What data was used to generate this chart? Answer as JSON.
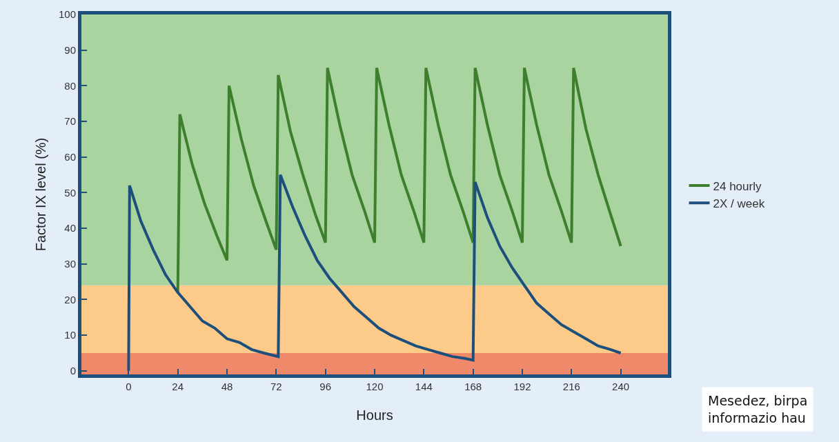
{
  "chart_data": {
    "type": "line",
    "xlabel": "Hours",
    "ylabel": "Factor IX level (%)",
    "xlim": [
      -23,
      263
    ],
    "ylim": [
      -1,
      100
    ],
    "xticks": [
      0,
      24,
      48,
      72,
      96,
      120,
      144,
      168,
      192,
      216,
      240
    ],
    "yticks": [
      0,
      10,
      20,
      30,
      40,
      50,
      60,
      70,
      80,
      90,
      100
    ],
    "grid": false,
    "legend": "right",
    "marker": "none",
    "line_style": "solid",
    "bands": [
      {
        "axis": "y",
        "from": -1,
        "to": 5,
        "color": "#f0896a"
      },
      {
        "axis": "y",
        "from": 5,
        "to": 24,
        "color": "#fccb8a"
      },
      {
        "axis": "y",
        "from": 24,
        "to": 100,
        "color": "#a9d4a0"
      }
    ],
    "series": [
      {
        "name": "24 hourly",
        "color": "#3e7f2e",
        "x": [
          24,
          25,
          31,
          37,
          43,
          48,
          49,
          55,
          61,
          67,
          72,
          73,
          79,
          85,
          91,
          96,
          97,
          103,
          109,
          115,
          120,
          121,
          127,
          133,
          139,
          144,
          145,
          151,
          157,
          163,
          168,
          169,
          175,
          181,
          187,
          192,
          193,
          199,
          205,
          211,
          216,
          217,
          223,
          229,
          235,
          240
        ],
        "values": [
          22,
          72,
          58,
          47,
          38,
          31,
          80,
          65,
          52,
          42,
          34,
          83,
          67,
          55,
          44,
          36,
          85,
          69,
          55,
          45,
          36,
          85,
          69,
          55,
          45,
          36,
          85,
          69,
          55,
          45,
          36,
          85,
          69,
          55,
          45,
          36,
          85,
          69,
          55,
          45,
          36,
          85,
          68,
          55,
          44,
          35
        ]
      },
      {
        "name": "2X / week",
        "color": "#1c4f7c",
        "x": [
          0,
          0.5,
          6,
          12,
          18,
          24,
          30,
          36,
          42,
          48,
          54,
          60,
          66,
          73,
          74,
          80,
          86,
          92,
          98,
          104,
          110,
          116,
          122,
          128,
          134,
          140,
          146,
          152,
          158,
          164,
          168,
          169,
          175,
          181,
          187,
          193,
          199,
          205,
          211,
          217,
          223,
          229,
          235,
          240
        ],
        "values": [
          0,
          52,
          42,
          34,
          27,
          22,
          18,
          14,
          12,
          9,
          8,
          6,
          5,
          4,
          55,
          46,
          38,
          31,
          26,
          22,
          18,
          15,
          12,
          10,
          8.5,
          7,
          6,
          5,
          4,
          3.5,
          3,
          53,
          43,
          35,
          29,
          24,
          19,
          16,
          13,
          11,
          9,
          7,
          6,
          5
        ]
      }
    ],
    "annotations": [
      "Mesedez, birpa\ninformazio hau"
    ]
  }
}
